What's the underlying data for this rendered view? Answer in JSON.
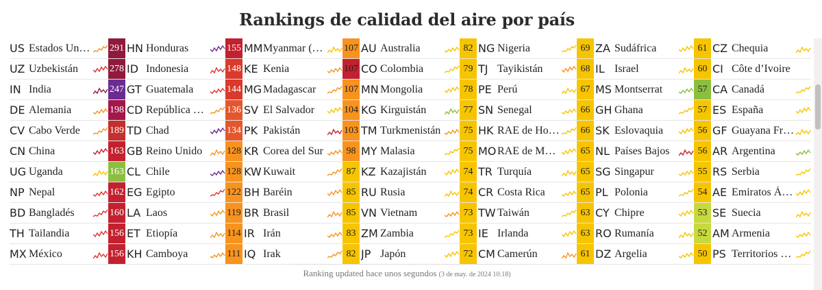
{
  "title": "Rankings de calidad del aire por país",
  "footer": {
    "label": "Ranking updated hace unos segundos",
    "timestamp": "(3 de may. de 2024 10:18)"
  },
  "columns": [
    [
      {
        "code": "US",
        "name": "Estados Unidos",
        "aqi": "291",
        "bg": "#8f1a3c",
        "text": "#ffffff",
        "spark": "#f7931e"
      },
      {
        "code": "UZ",
        "name": "Uzbekistán",
        "aqi": "278",
        "bg": "#8f1a3c",
        "text": "#ffffff",
        "spark": "#e0312a"
      },
      {
        "code": "IN",
        "name": "India",
        "aqi": "247",
        "bg": "#6a2c91",
        "text": "#ffffff",
        "spark": "#8f1a3c"
      },
      {
        "code": "DE",
        "name": "Alemania",
        "aqi": "198",
        "bg": "#a3174a",
        "text": "#ffffff",
        "spark": "#f7931e"
      },
      {
        "code": "CV",
        "name": "Cabo Verde",
        "aqi": "189",
        "bg": "#c3302d",
        "text": "#ffffff",
        "spark": "#f7931e"
      },
      {
        "code": "CN",
        "name": "China",
        "aqi": "163",
        "bg": "#c3212f",
        "text": "#ffffff",
        "spark": "#c3212f"
      },
      {
        "code": "UG",
        "name": "Uganda",
        "aqi": "163",
        "bg": "#8cbf3f",
        "text": "#ffffff",
        "spark": "#f7c500"
      },
      {
        "code": "NP",
        "name": "Nepal",
        "aqi": "162",
        "bg": "#c3212f",
        "text": "#ffffff",
        "spark": "#e0312a"
      },
      {
        "code": "BD",
        "name": "Bangladés",
        "aqi": "160",
        "bg": "#c3212f",
        "text": "#ffffff",
        "spark": "#e0312a"
      },
      {
        "code": "TH",
        "name": "Tailandia",
        "aqi": "156",
        "bg": "#c3212f",
        "text": "#ffffff",
        "spark": "#e0312a"
      },
      {
        "code": "MX",
        "name": "México",
        "aqi": "156",
        "bg": "#c3212f",
        "text": "#ffffff",
        "spark": "#e0312a"
      }
    ],
    [
      {
        "code": "HN",
        "name": "Honduras",
        "aqi": "155",
        "bg": "#c3212f",
        "text": "#ffffff",
        "spark": "#6a2c91"
      },
      {
        "code": "ID",
        "name": "Indonesia",
        "aqi": "148",
        "bg": "#d93a2b",
        "text": "#ffffff",
        "spark": "#e0312a"
      },
      {
        "code": "GT",
        "name": "Guatemala",
        "aqi": "144",
        "bg": "#d93a2b",
        "text": "#ffffff",
        "spark": "#e0312a"
      },
      {
        "code": "CD",
        "name": "República Democrática",
        "aqi": "136",
        "bg": "#e4572e",
        "text": "#ffffff",
        "spark": "#f7931e"
      },
      {
        "code": "TD",
        "name": "Chad",
        "aqi": "134",
        "bg": "#e4572e",
        "text": "#ffffff",
        "spark": "#6a2c91"
      },
      {
        "code": "GB",
        "name": "Reino Unido",
        "aqi": "128",
        "bg": "#f7931e",
        "text": "#222222",
        "spark": "#f7931e"
      },
      {
        "code": "CL",
        "name": "Chile",
        "aqi": "128",
        "bg": "#f7931e",
        "text": "#222222",
        "spark": "#6a2c91"
      },
      {
        "code": "EG",
        "name": "Egipto",
        "aqi": "122",
        "bg": "#f7931e",
        "text": "#222222",
        "spark": "#e0312a"
      },
      {
        "code": "LA",
        "name": "Laos",
        "aqi": "119",
        "bg": "#f7931e",
        "text": "#222222",
        "spark": "#f7931e"
      },
      {
        "code": "ET",
        "name": "Etiopía",
        "aqi": "114",
        "bg": "#f7931e",
        "text": "#222222",
        "spark": "#f7931e"
      },
      {
        "code": "KH",
        "name": "Camboya",
        "aqi": "111",
        "bg": "#f7931e",
        "text": "#222222",
        "spark": "#f7931e"
      }
    ],
    [
      {
        "code": "MM",
        "name": "Myanmar (Birmania)",
        "aqi": "107",
        "bg": "#f7931e",
        "text": "#222222",
        "spark": "#f7c500"
      },
      {
        "code": "KE",
        "name": "Kenia",
        "aqi": "107",
        "bg": "#c3212f",
        "text": "#222222",
        "spark": "#f7931e"
      },
      {
        "code": "MG",
        "name": "Madagascar",
        "aqi": "107",
        "bg": "#f7931e",
        "text": "#222222",
        "spark": "#f7931e"
      },
      {
        "code": "SV",
        "name": "El Salvador",
        "aqi": "104",
        "bg": "#f7931e",
        "text": "#222222",
        "spark": "#f7c500"
      },
      {
        "code": "PK",
        "name": "Pakistán",
        "aqi": "103",
        "bg": "#f7931e",
        "text": "#222222",
        "spark": "#c3212f"
      },
      {
        "code": "KR",
        "name": "Corea del Sur",
        "aqi": "98",
        "bg": "#f7931e",
        "text": "#222222",
        "spark": "#f7931e"
      },
      {
        "code": "KW",
        "name": "Kuwait",
        "aqi": "87",
        "bg": "#f7c500",
        "text": "#222222",
        "spark": "#f7931e"
      },
      {
        "code": "BH",
        "name": "Baréin",
        "aqi": "85",
        "bg": "#f7c500",
        "text": "#222222",
        "spark": "#f7931e"
      },
      {
        "code": "BR",
        "name": "Brasil",
        "aqi": "85",
        "bg": "#f7c500",
        "text": "#222222",
        "spark": "#f7931e"
      },
      {
        "code": "IR",
        "name": "Irán",
        "aqi": "83",
        "bg": "#f7c500",
        "text": "#222222",
        "spark": "#f7931e"
      },
      {
        "code": "IQ",
        "name": "Irak",
        "aqi": "82",
        "bg": "#f7c500",
        "text": "#222222",
        "spark": "#f7931e"
      }
    ],
    [
      {
        "code": "AU",
        "name": "Australia",
        "aqi": "82",
        "bg": "#f7c500",
        "text": "#222222",
        "spark": "#f7c500"
      },
      {
        "code": "CO",
        "name": "Colombia",
        "aqi": "79",
        "bg": "#f7c500",
        "text": "#222222",
        "spark": "#f7c500"
      },
      {
        "code": "MN",
        "name": "Mongolia",
        "aqi": "78",
        "bg": "#f7c500",
        "text": "#222222",
        "spark": "#f7c500"
      },
      {
        "code": "KG",
        "name": "Kirguistán",
        "aqi": "77",
        "bg": "#f7c500",
        "text": "#222222",
        "spark": "#8cbf3f"
      },
      {
        "code": "TM",
        "name": "Turkmenistán",
        "aqi": "75",
        "bg": "#f7c500",
        "text": "#222222",
        "spark": "#f7931e"
      },
      {
        "code": "MY",
        "name": "Malasia",
        "aqi": "75",
        "bg": "#f7c500",
        "text": "#222222",
        "spark": "#f7c500"
      },
      {
        "code": "KZ",
        "name": "Kazajistán",
        "aqi": "74",
        "bg": "#f7c500",
        "text": "#222222",
        "spark": "#f7c500"
      },
      {
        "code": "RU",
        "name": "Rusia",
        "aqi": "74",
        "bg": "#f7c500",
        "text": "#222222",
        "spark": "#f7c500"
      },
      {
        "code": "VN",
        "name": "Vietnam",
        "aqi": "73",
        "bg": "#f7c500",
        "text": "#222222",
        "spark": "#f7931e"
      },
      {
        "code": "ZM",
        "name": "Zambia",
        "aqi": "73",
        "bg": "#f7c500",
        "text": "#222222",
        "spark": "#f7c500"
      },
      {
        "code": "JP",
        "name": "Japón",
        "aqi": "72",
        "bg": "#f7c500",
        "text": "#222222",
        "spark": "#f7c500"
      }
    ],
    [
      {
        "code": "NG",
        "name": "Nigeria",
        "aqi": "69",
        "bg": "#f7c500",
        "text": "#222222",
        "spark": "#f7c500"
      },
      {
        "code": "TJ",
        "name": "Tayikistán",
        "aqi": "68",
        "bg": "#f7c500",
        "text": "#222222",
        "spark": "#f7931e"
      },
      {
        "code": "PE",
        "name": "Perú",
        "aqi": "67",
        "bg": "#f7c500",
        "text": "#222222",
        "spark": "#f7c500"
      },
      {
        "code": "SN",
        "name": "Senegal",
        "aqi": "66",
        "bg": "#f7c500",
        "text": "#222222",
        "spark": "#f7c500"
      },
      {
        "code": "HK",
        "name": "RAE de Hong Kong",
        "aqi": "66",
        "bg": "#f7c500",
        "text": "#222222",
        "spark": "#f7c500"
      },
      {
        "code": "MO",
        "name": "RAE de Macao",
        "aqi": "65",
        "bg": "#f7c500",
        "text": "#222222",
        "spark": "#f7c500"
      },
      {
        "code": "TR",
        "name": "Turquía",
        "aqi": "65",
        "bg": "#f7c500",
        "text": "#222222",
        "spark": "#f7c500"
      },
      {
        "code": "CR",
        "name": "Costa Rica",
        "aqi": "65",
        "bg": "#f7c500",
        "text": "#222222",
        "spark": "#f7c500"
      },
      {
        "code": "TW",
        "name": "Taiwán",
        "aqi": "63",
        "bg": "#f7c500",
        "text": "#222222",
        "spark": "#f7c500"
      },
      {
        "code": "IE",
        "name": "Irlanda",
        "aqi": "63",
        "bg": "#f7c500",
        "text": "#222222",
        "spark": "#f7c500"
      },
      {
        "code": "CM",
        "name": "Camerún",
        "aqi": "61",
        "bg": "#f7c500",
        "text": "#222222",
        "spark": "#f7931e"
      }
    ],
    [
      {
        "code": "ZA",
        "name": "Sudáfrica",
        "aqi": "61",
        "bg": "#f7c500",
        "text": "#222222",
        "spark": "#f7c500"
      },
      {
        "code": "IL",
        "name": "Israel",
        "aqi": "60",
        "bg": "#f7c500",
        "text": "#222222",
        "spark": "#f7c500"
      },
      {
        "code": "MS",
        "name": "Montserrat",
        "aqi": "57",
        "bg": "#8cbf3f",
        "text": "#222222",
        "spark": "#8cbf3f"
      },
      {
        "code": "GH",
        "name": "Ghana",
        "aqi": "57",
        "bg": "#f7c500",
        "text": "#222222",
        "spark": "#f7c500"
      },
      {
        "code": "SK",
        "name": "Eslovaquia",
        "aqi": "56",
        "bg": "#f7c500",
        "text": "#222222",
        "spark": "#f7c500"
      },
      {
        "code": "NL",
        "name": "Países Bajos",
        "aqi": "56",
        "bg": "#f7c500",
        "text": "#222222",
        "spark": "#c3212f"
      },
      {
        "code": "SG",
        "name": "Singapur",
        "aqi": "55",
        "bg": "#f7c500",
        "text": "#222222",
        "spark": "#f7c500"
      },
      {
        "code": "PL",
        "name": "Polonia",
        "aqi": "54",
        "bg": "#f7c500",
        "text": "#222222",
        "spark": "#f7c500"
      },
      {
        "code": "CY",
        "name": "Chipre",
        "aqi": "53",
        "bg": "#c7d93f",
        "text": "#222222",
        "spark": "#f7c500"
      },
      {
        "code": "RO",
        "name": "Rumanía",
        "aqi": "52",
        "bg": "#c7d93f",
        "text": "#222222",
        "spark": "#f7c500"
      },
      {
        "code": "DZ",
        "name": "Argelia",
        "aqi": "50",
        "bg": "#f7c500",
        "text": "#222222",
        "spark": "#f7c500"
      }
    ],
    [
      {
        "code": "CZ",
        "name": "Chequia",
        "aqi": "",
        "bg": "",
        "text": "",
        "spark": "#f7c500"
      },
      {
        "code": "CI",
        "name": "Côte d’Ivoire",
        "aqi": "",
        "bg": "",
        "text": "",
        "spark": ""
      },
      {
        "code": "CA",
        "name": "Canadá",
        "aqi": "",
        "bg": "",
        "text": "",
        "spark": "#f7c500"
      },
      {
        "code": "ES",
        "name": "España",
        "aqi": "",
        "bg": "",
        "text": "",
        "spark": "#f7c500"
      },
      {
        "code": "GF",
        "name": "Guayana Francesa",
        "aqi": "",
        "bg": "",
        "text": "",
        "spark": "#f7c500"
      },
      {
        "code": "AR",
        "name": "Argentina",
        "aqi": "",
        "bg": "",
        "text": "",
        "spark": "#8cbf3f"
      },
      {
        "code": "RS",
        "name": "Serbia",
        "aqi": "",
        "bg": "",
        "text": "",
        "spark": "#f7c500"
      },
      {
        "code": "AE",
        "name": "Emiratos Árabes",
        "aqi": "",
        "bg": "",
        "text": "",
        "spark": "#f7c500"
      },
      {
        "code": "SE",
        "name": "Suecia",
        "aqi": "",
        "bg": "",
        "text": "",
        "spark": "#f7c500"
      },
      {
        "code": "AM",
        "name": "Armenia",
        "aqi": "",
        "bg": "",
        "text": "",
        "spark": "#f7c500"
      },
      {
        "code": "PS",
        "name": "Territorios Palestinos",
        "aqi": "",
        "bg": "",
        "text": "",
        "spark": "#f7c500"
      }
    ]
  ]
}
